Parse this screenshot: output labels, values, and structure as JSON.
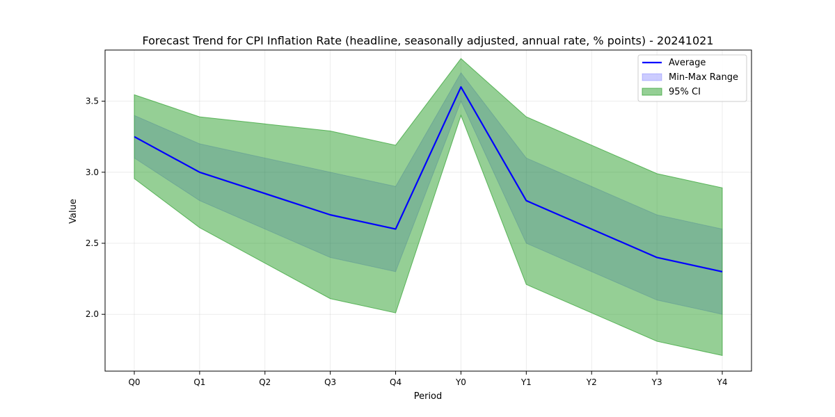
{
  "chart_data": {
    "type": "line",
    "title": "Forecast Trend for CPI Inflation Rate (headline, seasonally adjusted, annual rate, % points) - 20241021",
    "xlabel": "Period",
    "ylabel": "Value",
    "categories": [
      "Q0",
      "Q1",
      "Q2",
      "Q3",
      "Q4",
      "Y0",
      "Y1",
      "Y2",
      "Y3",
      "Y4"
    ],
    "ylim": [
      1.6,
      3.86
    ],
    "yticks": [
      2.0,
      2.5,
      3.0,
      3.5
    ],
    "ytick_labels": [
      "2.0",
      "2.5",
      "3.0",
      "3.5"
    ],
    "grid": true,
    "legend_position": "top-right",
    "series": [
      {
        "name": "Average",
        "kind": "line",
        "color": "#0000ff",
        "values": [
          3.25,
          3.0,
          2.85,
          2.7,
          2.6,
          3.6,
          2.8,
          2.6,
          2.4,
          2.3
        ]
      },
      {
        "name": "Min-Max Range",
        "kind": "band",
        "color": "#0000ff",
        "lower": [
          3.1,
          2.8,
          2.6,
          2.4,
          2.3,
          3.5,
          2.5,
          2.3,
          2.1,
          2.0
        ],
        "upper": [
          3.4,
          3.2,
          3.1,
          3.0,
          2.9,
          3.7,
          3.1,
          2.9,
          2.7,
          2.6
        ]
      },
      {
        "name": "95% CI",
        "kind": "band",
        "color": "#2ca02c",
        "lower": [
          2.955,
          2.61,
          2.36,
          2.11,
          2.01,
          3.4,
          2.21,
          2.01,
          1.81,
          1.71
        ],
        "upper": [
          3.545,
          3.39,
          3.34,
          3.29,
          3.19,
          3.8,
          3.39,
          3.19,
          2.99,
          2.89
        ]
      }
    ],
    "legend": [
      "Average",
      "Min-Max Range",
      "95% CI"
    ]
  }
}
